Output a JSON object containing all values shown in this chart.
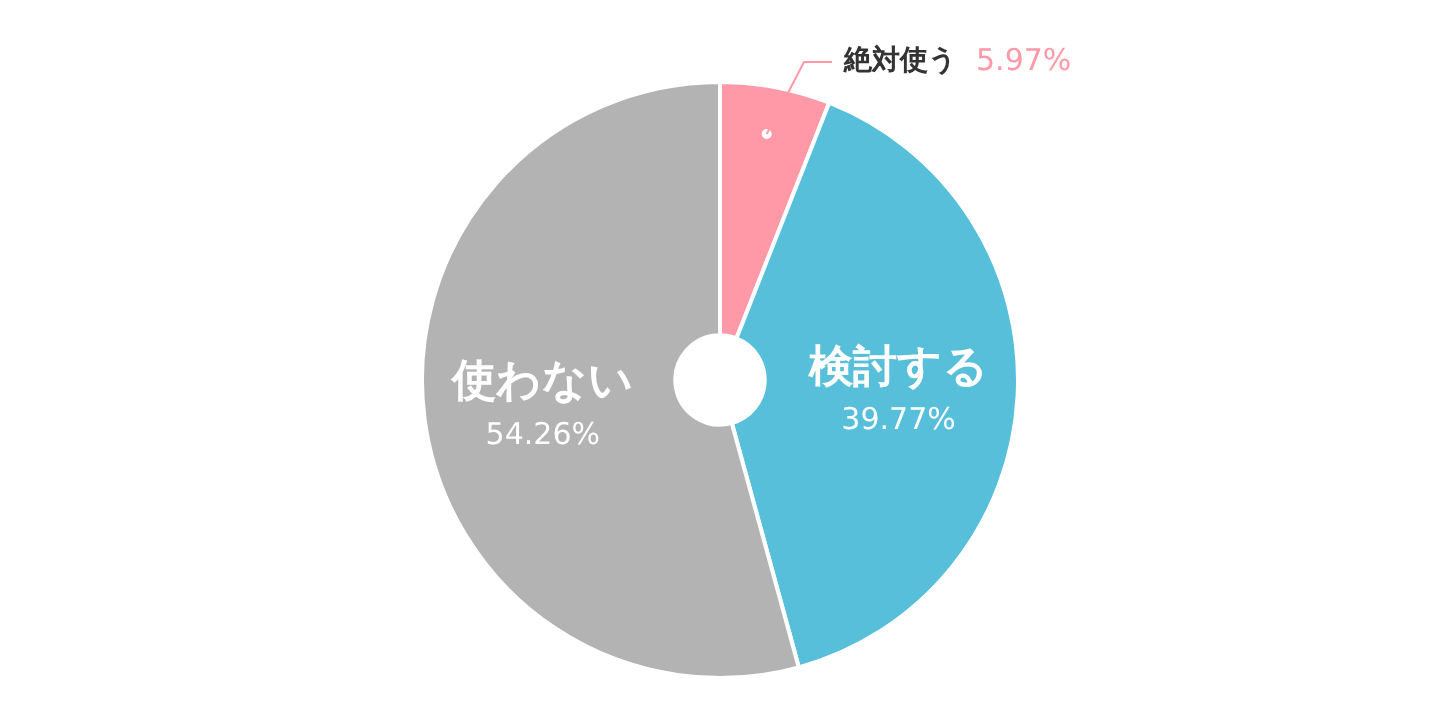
{
  "chart_data": {
    "type": "donut",
    "categories": [
      "絶対使う",
      "検討する",
      "使わない"
    ],
    "values": [
      5.97,
      39.77,
      54.26
    ],
    "colors": [
      "#ff99a8",
      "#57bfd9",
      "#b3b3b3"
    ],
    "value_labels": [
      "5.97%",
      "39.77%",
      "54.26%"
    ],
    "legend": false
  }
}
